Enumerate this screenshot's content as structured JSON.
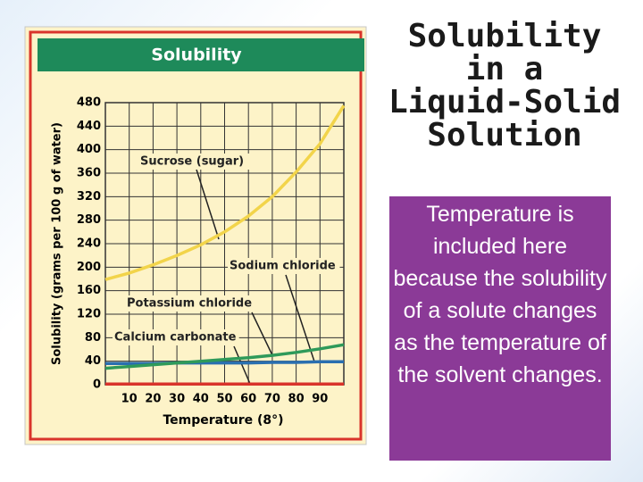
{
  "chart_data": {
    "type": "line",
    "title": "Solubility",
    "x_label": "Temperature (8°)",
    "y_label": "Solubility (grams per 100 g of water)",
    "x": [
      0,
      10,
      20,
      30,
      40,
      50,
      60,
      70,
      80,
      90,
      100
    ],
    "xlim": [
      0,
      100
    ],
    "xticks": [
      10,
      20,
      30,
      40,
      50,
      60,
      70,
      80,
      90
    ],
    "ylim": [
      0,
      480
    ],
    "yticks": [
      0,
      40,
      80,
      120,
      160,
      200,
      240,
      280,
      320,
      360,
      400,
      440,
      480
    ],
    "grid": true,
    "series": [
      {
        "name": "Sucrose (sugar)",
        "color": "#f2d44a",
        "values": [
          179,
          190,
          204,
          220,
          238,
          260,
          287,
          320,
          362,
          410,
          475
        ]
      },
      {
        "name": "Sodium chloride",
        "color": "#2a6fb0",
        "values": [
          36,
          36,
          36,
          37,
          37,
          37,
          37,
          38,
          38,
          39,
          39
        ]
      },
      {
        "name": "Potassium chloride",
        "color": "#2f9a5a",
        "values": [
          28,
          31,
          34,
          37,
          40,
          43,
          46,
          50,
          55,
          61,
          68
        ]
      },
      {
        "name": "Calcium carbonate",
        "color": "#d9342b",
        "values": [
          1,
          1,
          1,
          1,
          1,
          1,
          1,
          1,
          1,
          1,
          1
        ]
      }
    ]
  },
  "slide": {
    "title_lines": [
      "Solubility",
      "in a",
      "Liquid-Solid",
      "Solution"
    ],
    "body": "Temperature is included here because the solubility of a solute changes as the temperature of the solvent changes."
  }
}
